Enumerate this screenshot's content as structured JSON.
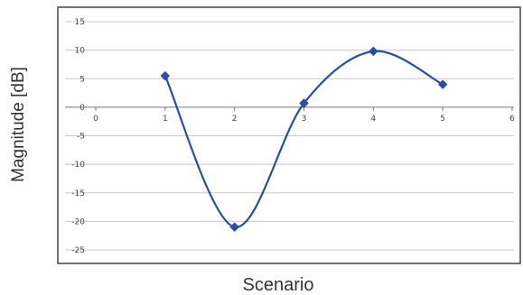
{
  "chart_data": {
    "type": "line",
    "xlabel": "Scenario",
    "ylabel": "Magnitude [dB]",
    "xlim": [
      0,
      6
    ],
    "ylim": [
      -25,
      15
    ],
    "x_ticks": [
      0,
      1,
      2,
      3,
      4,
      5,
      6
    ],
    "y_ticks": [
      15,
      10,
      5,
      0,
      -5,
      -10,
      -15,
      -20,
      -25
    ],
    "grid": "horizontal",
    "series": [
      {
        "color": "#2b4f9e",
        "marker": "diamond",
        "smooth": true,
        "points": [
          {
            "x": 1,
            "y": 5.5
          },
          {
            "x": 2,
            "y": -21
          },
          {
            "x": 3,
            "y": 0.7
          },
          {
            "x": 4,
            "y": 9.8
          },
          {
            "x": 5,
            "y": 4
          }
        ]
      }
    ]
  }
}
